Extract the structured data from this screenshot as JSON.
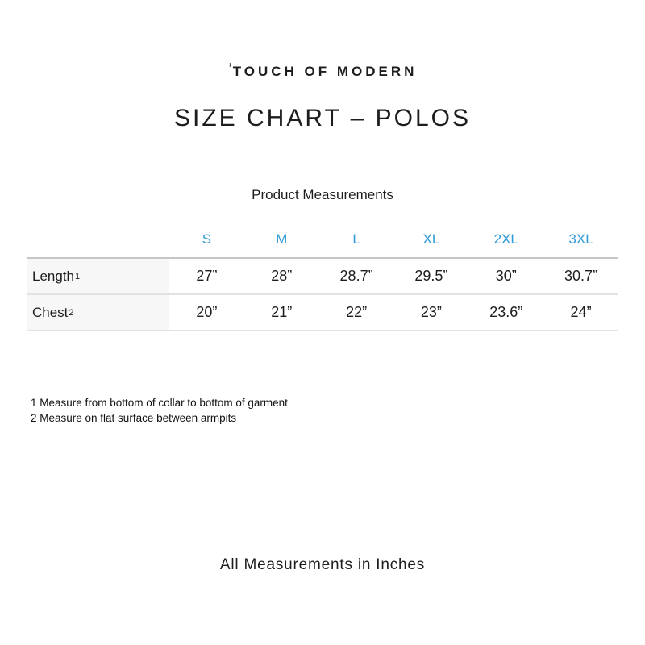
{
  "brand": {
    "tick": "’",
    "name": "TOUCH OF MODERN"
  },
  "page_title": "SIZE CHART – POLOS",
  "table": {
    "caption": "Product Measurements",
    "sizes": [
      "S",
      "M",
      "L",
      "XL",
      "2XL",
      "3XL"
    ],
    "rows": [
      {
        "label": "Length",
        "footnote_mark": "1",
        "values": [
          "27”",
          "28”",
          "28.7”",
          "29.5”",
          "30”",
          "30.7”"
        ]
      },
      {
        "label": "Chest",
        "footnote_mark": "2",
        "values": [
          "20”",
          "21”",
          "22”",
          "23”",
          "23.6”",
          "24”"
        ]
      }
    ]
  },
  "footnotes": [
    "1 Measure from bottom of collar to bottom of garment",
    "2 Measure on flat surface between armpits"
  ],
  "footer_note": "All Measurements in Inches",
  "colors": {
    "accent_blue": "#2E9AD8",
    "text": "#1D1D1F",
    "row_label_bg": "#F7F7F7",
    "table_top_border": "#C6C6C6",
    "row_border": "#E3E3E3",
    "background": "#FFFFFF"
  }
}
